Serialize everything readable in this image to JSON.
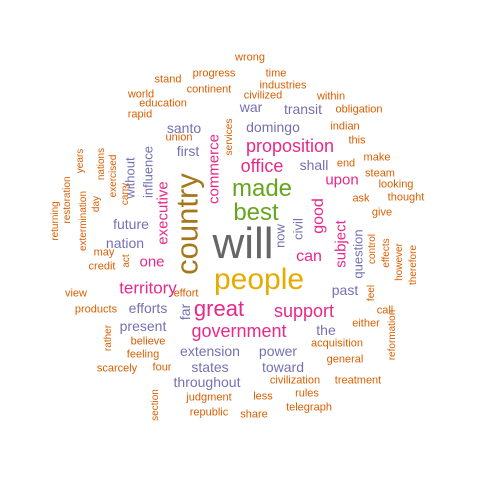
{
  "palette": {
    "orange": "#d95f02",
    "slate": "#7570b3",
    "magenta": "#e7298a",
    "green": "#66a61e",
    "gold": "#e6ab02",
    "brown": "#a6761d",
    "gray": "#666666"
  },
  "words": [
    {
      "text": "will",
      "color": "gray"
    },
    {
      "text": "people",
      "color": "gold"
    },
    {
      "text": "country",
      "color": "brown"
    },
    {
      "text": "made",
      "color": "green"
    },
    {
      "text": "best",
      "color": "green"
    },
    {
      "text": "great",
      "color": "magenta"
    },
    {
      "text": "government",
      "color": "magenta"
    },
    {
      "text": "support",
      "color": "magenta"
    },
    {
      "text": "proposition",
      "color": "magenta"
    },
    {
      "text": "office",
      "color": "magenta"
    },
    {
      "text": "territory",
      "color": "magenta"
    },
    {
      "text": "upon",
      "color": "magenta"
    },
    {
      "text": "can",
      "color": "magenta"
    },
    {
      "text": "good",
      "color": "magenta"
    },
    {
      "text": "subject",
      "color": "magenta"
    },
    {
      "text": "commerce",
      "color": "magenta"
    },
    {
      "text": "executive",
      "color": "magenta"
    },
    {
      "text": "one",
      "color": "magenta"
    },
    {
      "text": "first",
      "color": "slate"
    },
    {
      "text": "santo",
      "color": "slate"
    },
    {
      "text": "domingo",
      "color": "slate"
    },
    {
      "text": "war",
      "color": "slate"
    },
    {
      "text": "transit",
      "color": "slate"
    },
    {
      "text": "shall",
      "color": "slate"
    },
    {
      "text": "question",
      "color": "slate"
    },
    {
      "text": "civil",
      "color": "slate"
    },
    {
      "text": "now",
      "color": "slate"
    },
    {
      "text": "past",
      "color": "slate"
    },
    {
      "text": "influence",
      "color": "slate"
    },
    {
      "text": "without",
      "color": "slate"
    },
    {
      "text": "future",
      "color": "slate"
    },
    {
      "text": "nation",
      "color": "slate"
    },
    {
      "text": "efforts",
      "color": "slate"
    },
    {
      "text": "far",
      "color": "slate"
    },
    {
      "text": "present",
      "color": "slate"
    },
    {
      "text": "the",
      "color": "slate"
    },
    {
      "text": "extension",
      "color": "slate"
    },
    {
      "text": "power",
      "color": "slate"
    },
    {
      "text": "states",
      "color": "slate"
    },
    {
      "text": "toward",
      "color": "slate"
    },
    {
      "text": "throughout",
      "color": "slate"
    },
    {
      "text": "wrong",
      "color": "orange"
    },
    {
      "text": "progress",
      "color": "orange"
    },
    {
      "text": "time",
      "color": "orange"
    },
    {
      "text": "stand",
      "color": "orange"
    },
    {
      "text": "continent",
      "color": "orange"
    },
    {
      "text": "industries",
      "color": "orange"
    },
    {
      "text": "world",
      "color": "orange"
    },
    {
      "text": "civilized",
      "color": "orange"
    },
    {
      "text": "within",
      "color": "orange"
    },
    {
      "text": "education",
      "color": "orange"
    },
    {
      "text": "obligation",
      "color": "orange"
    },
    {
      "text": "rapid",
      "color": "orange"
    },
    {
      "text": "indian",
      "color": "orange"
    },
    {
      "text": "union",
      "color": "orange"
    },
    {
      "text": "services",
      "color": "orange"
    },
    {
      "text": "this",
      "color": "orange"
    },
    {
      "text": "years",
      "color": "orange"
    },
    {
      "text": "end",
      "color": "orange"
    },
    {
      "text": "make",
      "color": "orange"
    },
    {
      "text": "nations",
      "color": "orange"
    },
    {
      "text": "exercised",
      "color": "orange"
    },
    {
      "text": "restoration",
      "color": "orange"
    },
    {
      "text": "steam",
      "color": "orange"
    },
    {
      "text": "looking",
      "color": "orange"
    },
    {
      "text": "carry",
      "color": "orange"
    },
    {
      "text": "ask",
      "color": "orange"
    },
    {
      "text": "thought",
      "color": "orange"
    },
    {
      "text": "day",
      "color": "orange"
    },
    {
      "text": "give",
      "color": "orange"
    },
    {
      "text": "returning",
      "color": "orange"
    },
    {
      "text": "extermination",
      "color": "orange"
    },
    {
      "text": "may",
      "color": "orange"
    },
    {
      "text": "control",
      "color": "orange"
    },
    {
      "text": "effects",
      "color": "orange"
    },
    {
      "text": "however",
      "color": "orange"
    },
    {
      "text": "therefore",
      "color": "orange"
    },
    {
      "text": "act",
      "color": "orange"
    },
    {
      "text": "credit",
      "color": "orange"
    },
    {
      "text": "feel",
      "color": "orange"
    },
    {
      "text": "view",
      "color": "orange"
    },
    {
      "text": "effort",
      "color": "orange"
    },
    {
      "text": "call",
      "color": "orange"
    },
    {
      "text": "either",
      "color": "orange"
    },
    {
      "text": "products",
      "color": "orange"
    },
    {
      "text": "reformation",
      "color": "orange"
    },
    {
      "text": "rather",
      "color": "orange"
    },
    {
      "text": "believe",
      "color": "orange"
    },
    {
      "text": "acquisition",
      "color": "orange"
    },
    {
      "text": "feeling",
      "color": "orange"
    },
    {
      "text": "general",
      "color": "orange"
    },
    {
      "text": "scarcely",
      "color": "orange"
    },
    {
      "text": "four",
      "color": "orange"
    },
    {
      "text": "civilization",
      "color": "orange"
    },
    {
      "text": "treatment",
      "color": "orange"
    },
    {
      "text": "rules",
      "color": "orange"
    },
    {
      "text": "judgment",
      "color": "orange"
    },
    {
      "text": "less",
      "color": "orange"
    },
    {
      "text": "telegraph",
      "color": "orange"
    },
    {
      "text": "section",
      "color": "orange"
    },
    {
      "text": "republic",
      "color": "orange"
    },
    {
      "text": "share",
      "color": "orange"
    }
  ]
}
